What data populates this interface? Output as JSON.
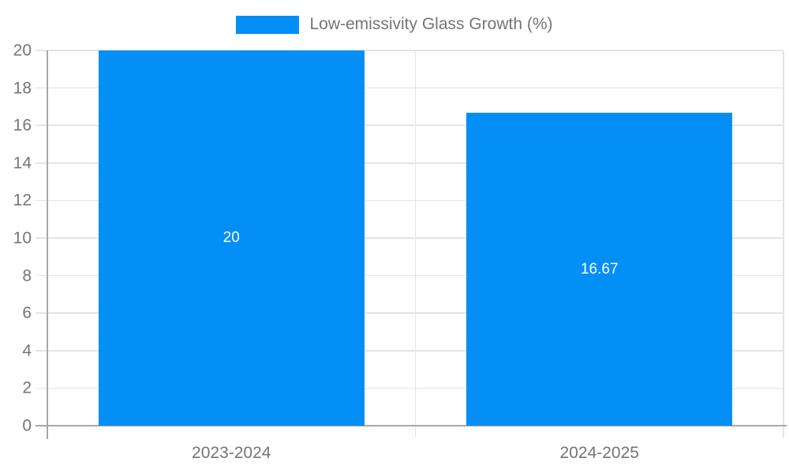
{
  "colors": {
    "background": "#ffffff",
    "bar": "#048ff7",
    "axis_label": "#757575",
    "gridline": "#e4e4e4",
    "axis_line": "#a8a8a8",
    "data_label": "#ffffff"
  },
  "chart_data": {
    "type": "bar",
    "title": "",
    "xlabel": "",
    "ylabel": "",
    "categories": [
      "2023-2024",
      "2024-2025"
    ],
    "series": [
      {
        "name": "Low-emissivity Glass Growth (%)",
        "values": [
          20,
          16.67
        ]
      }
    ],
    "data_labels": [
      "20",
      "16.67"
    ],
    "ylim": [
      0,
      20
    ],
    "yticks": [
      0,
      2,
      4,
      6,
      8,
      10,
      12,
      14,
      16,
      18,
      20
    ],
    "grid": true,
    "legend_position": "top-center"
  }
}
